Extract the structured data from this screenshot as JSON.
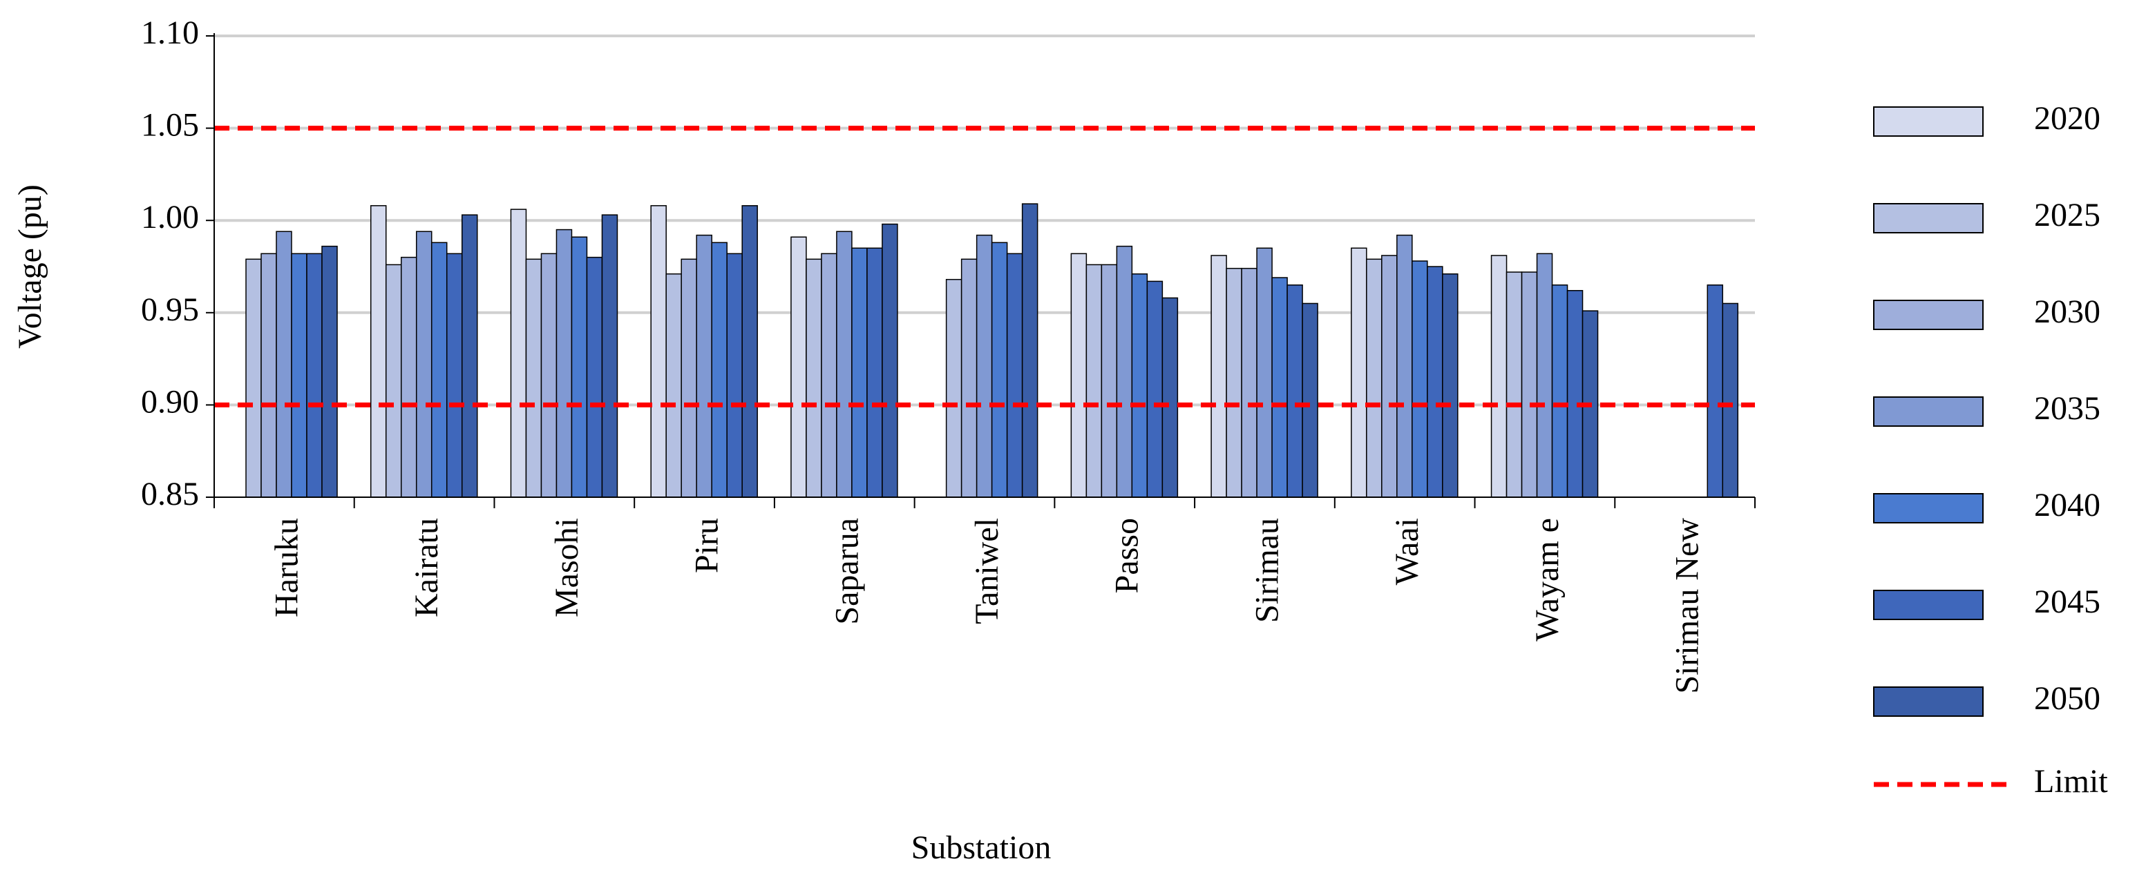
{
  "chart_data": {
    "type": "bar",
    "x_label": "Substation",
    "y_label": "Voltage (pu)",
    "categories": [
      "Haruku",
      "Kairatu",
      "Masohi",
      "Piru",
      "Saparua",
      "Taniwel",
      "Passo",
      "Sirimau",
      "Waai",
      "Wayam e",
      "Sirimau New"
    ],
    "series": [
      {
        "name": "2020",
        "color": "#d4daee",
        "values": [
          null,
          1.008,
          1.006,
          1.008,
          0.991,
          null,
          0.982,
          0.981,
          0.985,
          0.981,
          null
        ]
      },
      {
        "name": "2025",
        "color": "#b4c0e2",
        "values": [
          0.979,
          0.976,
          0.979,
          0.971,
          0.979,
          0.968,
          0.976,
          0.974,
          0.979,
          0.972,
          null
        ]
      },
      {
        "name": "2030",
        "color": "#9eaedb",
        "values": [
          0.982,
          0.98,
          0.982,
          0.979,
          0.982,
          0.979,
          0.976,
          0.974,
          0.981,
          0.972,
          null
        ]
      },
      {
        "name": "2035",
        "color": "#8099d3",
        "values": [
          0.994,
          0.994,
          0.995,
          0.992,
          0.994,
          0.992,
          0.986,
          0.985,
          0.992,
          0.982,
          null
        ]
      },
      {
        "name": "2040",
        "color": "#4a7bd0",
        "values": [
          0.982,
          0.988,
          0.991,
          0.988,
          0.985,
          0.988,
          0.971,
          0.969,
          0.978,
          0.965,
          null
        ]
      },
      {
        "name": "2045",
        "color": "#3f67bb",
        "values": [
          0.982,
          0.982,
          0.98,
          0.982,
          0.985,
          0.982,
          0.967,
          0.965,
          0.975,
          0.962,
          0.965
        ]
      },
      {
        "name": "2050",
        "color": "#3a5ea8",
        "values": [
          0.986,
          1.003,
          1.003,
          1.008,
          0.998,
          1.009,
          0.958,
          0.955,
          0.971,
          0.951,
          0.955
        ]
      }
    ],
    "limit_name": "Limit",
    "limit_color": "#ff0000",
    "limits": [
      1.05,
      0.9
    ],
    "ylim": [
      0.85,
      1.1
    ],
    "yticks": [
      0.85,
      {
        "value": 0.9,
        "label": "0.90"
      },
      0.95,
      {
        "value": 1,
        "label": "1.00"
      },
      1.05,
      {
        "value": 1.1,
        "label": "1.10"
      }
    ],
    "grid": true
  }
}
